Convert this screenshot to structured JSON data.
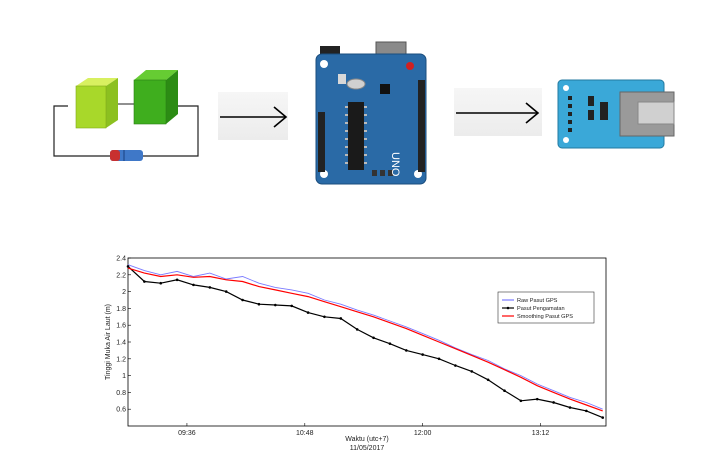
{
  "diagram": {
    "stages": [
      {
        "id": "solar-cell-circuit",
        "icon": "solar-panel-circuit-icon"
      },
      {
        "id": "arduino-uno-board",
        "icon": "arduino-uno-icon",
        "board_label": "UNO"
      },
      {
        "id": "sd-card-module",
        "icon": "sd-card-module-icon"
      }
    ],
    "arrows": [
      "right-arrow-icon",
      "right-arrow-icon"
    ]
  },
  "colors": {
    "panel_light": "#a8d82a",
    "panel_dark": "#3fae1e",
    "arduino_blue": "#2a6aa6",
    "sd_module_blue": "#3aa8d8",
    "raw_series": "#7b7bff",
    "observed_series": "#000000",
    "smooth_series": "#ff0000"
  },
  "chart_data": {
    "type": "line",
    "title": "",
    "xlabel": "Waktu (utc+7)",
    "xlabel2": "11/05/2017",
    "ylabel": "Tinggi Muka Air Laut (m)",
    "xlim": [
      "09:00",
      "13:52"
    ],
    "ylim": [
      0.4,
      2.4
    ],
    "x_ticks": [
      "09:36",
      "10:48",
      "12:00",
      "13:12"
    ],
    "y_ticks": [
      "0.6",
      "0.8",
      "1",
      "1.2",
      "1.4",
      "1.6",
      "1.8",
      "2",
      "2.2",
      "2.4"
    ],
    "grid": false,
    "legend_position": "right",
    "series": [
      {
        "name": "Raw Pasut GPS",
        "color": "#7b7bff",
        "x": [
          "09:00",
          "09:10",
          "09:20",
          "09:30",
          "09:40",
          "09:50",
          "10:00",
          "10:10",
          "10:20",
          "10:30",
          "10:40",
          "10:50",
          "11:00",
          "11:10",
          "11:20",
          "11:30",
          "11:40",
          "11:50",
          "12:00",
          "12:10",
          "12:20",
          "12:30",
          "12:40",
          "12:50",
          "13:00",
          "13:10",
          "13:20",
          "13:30",
          "13:40",
          "13:50"
        ],
        "y": [
          2.32,
          2.25,
          2.2,
          2.24,
          2.18,
          2.22,
          2.15,
          2.18,
          2.1,
          2.05,
          2.02,
          1.98,
          1.9,
          1.85,
          1.78,
          1.72,
          1.65,
          1.58,
          1.5,
          1.42,
          1.33,
          1.25,
          1.18,
          1.08,
          1.0,
          0.9,
          0.82,
          0.74,
          0.68,
          0.6
        ]
      },
      {
        "name": "Pasut Pengamatan",
        "color": "#000000",
        "x": [
          "09:00",
          "09:10",
          "09:20",
          "09:30",
          "09:40",
          "09:50",
          "10:00",
          "10:10",
          "10:20",
          "10:30",
          "10:40",
          "10:50",
          "11:00",
          "11:10",
          "11:20",
          "11:30",
          "11:40",
          "11:50",
          "12:00",
          "12:10",
          "12:20",
          "12:30",
          "12:40",
          "12:50",
          "13:00",
          "13:10",
          "13:20",
          "13:30",
          "13:40",
          "13:50"
        ],
        "y": [
          2.3,
          2.12,
          2.1,
          2.14,
          2.08,
          2.05,
          2.0,
          1.9,
          1.85,
          1.84,
          1.83,
          1.75,
          1.7,
          1.68,
          1.55,
          1.45,
          1.38,
          1.3,
          1.25,
          1.2,
          1.12,
          1.05,
          0.95,
          0.82,
          0.7,
          0.72,
          0.68,
          0.62,
          0.58,
          0.5
        ]
      },
      {
        "name": "Smoothing Pasut GPS",
        "color": "#ff0000",
        "x": [
          "09:00",
          "09:10",
          "09:20",
          "09:30",
          "09:40",
          "09:50",
          "10:00",
          "10:10",
          "10:20",
          "10:30",
          "10:40",
          "10:50",
          "11:00",
          "11:10",
          "11:20",
          "11:30",
          "11:40",
          "11:50",
          "12:00",
          "12:10",
          "12:20",
          "12:30",
          "12:40",
          "12:50",
          "13:00",
          "13:10",
          "13:20",
          "13:30",
          "13:40",
          "13:50"
        ],
        "y": [
          2.28,
          2.22,
          2.18,
          2.2,
          2.17,
          2.18,
          2.14,
          2.12,
          2.06,
          2.02,
          1.98,
          1.94,
          1.88,
          1.82,
          1.76,
          1.7,
          1.63,
          1.56,
          1.48,
          1.4,
          1.32,
          1.24,
          1.16,
          1.07,
          0.98,
          0.88,
          0.8,
          0.72,
          0.65,
          0.58
        ]
      }
    ]
  }
}
